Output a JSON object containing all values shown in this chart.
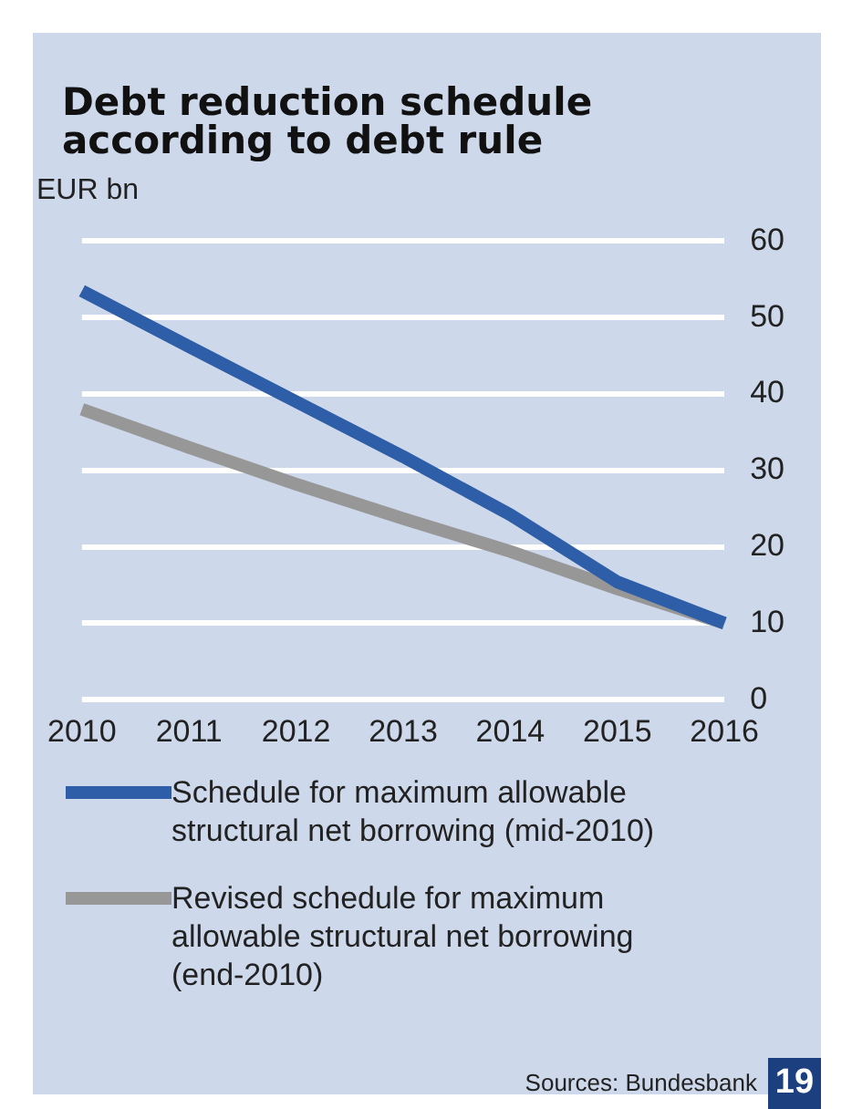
{
  "chart_data": {
    "type": "line",
    "title": "Debt reduction schedule according to debt rule",
    "ylabel": "EUR bn",
    "categories": [
      "2010",
      "2011",
      "2012",
      "2013",
      "2014",
      "2015",
      "2016"
    ],
    "series": [
      {
        "name": "Schedule for maximum allowable structural net borrowing (mid-2010)",
        "color": "#2f5ea8",
        "values": [
          53.5,
          46.2,
          39,
          31.8,
          24.2,
          15.4,
          10
        ]
      },
      {
        "name": "Revised schedule for maximum allowable structural net borrowing (end-2010)",
        "color": "#979797",
        "values": [
          38,
          33,
          28.2,
          23.7,
          19.4,
          14.5,
          10
        ]
      }
    ],
    "ylim": [
      0,
      60
    ],
    "yticks": [
      0,
      10,
      20,
      30,
      40,
      50,
      60
    ],
    "grid": "y",
    "legend": "bottom",
    "marker": "none",
    "line_style": "solid",
    "annotations": [
      "Sources: Bundesbank",
      "19"
    ]
  }
}
